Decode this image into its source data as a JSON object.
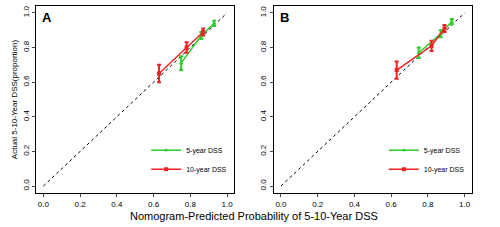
{
  "chart_data": {
    "type": "scatter",
    "xlabel": "Nomogram-Predicted Probability of 5-10-Year DSS",
    "ylabel": "Actual 5-10-Year DSS(proportion)",
    "legend": "lower right",
    "grid": false,
    "panels": [
      {
        "title": "A",
        "xlim": [
          -0.04,
          1.04
        ],
        "ylim": [
          -0.04,
          1.04
        ],
        "xticks": [
          {
            "value": 0,
            "label": "0.0"
          },
          0.2,
          0.4,
          0.6,
          0.8,
          {
            "value": 1,
            "label": "1.0"
          }
        ],
        "yticks": [
          {
            "value": 0,
            "label": "0.0"
          },
          0.2,
          0.4,
          0.6,
          0.8,
          {
            "value": 1,
            "label": "1.0"
          }
        ],
        "series": [
          {
            "color": "#000000",
            "line_style": "dotted",
            "x": [
              0,
              1
            ],
            "values": [
              0,
              1
            ]
          },
          {
            "name": "5-year DSS",
            "color": "#2ecc2e",
            "marker": "triangle",
            "line_style": "solid",
            "x": [
              0.75,
              0.86,
              0.93
            ],
            "values": [
              0.71,
              0.87,
              0.94
            ],
            "error": [
              0.04,
              0.02,
              0.015
            ]
          },
          {
            "name": "10-year DSS",
            "color": "#ee2222",
            "marker": "square",
            "line_style": "solid",
            "x": [
              0.63,
              0.78,
              0.87
            ],
            "values": [
              0.65,
              0.8,
              0.89
            ],
            "error": [
              0.05,
              0.03,
              0.02
            ]
          }
        ]
      },
      {
        "title": "B",
        "xlim": [
          -0.04,
          1.04
        ],
        "ylim": [
          -0.04,
          1.04
        ],
        "xticks": [
          {
            "value": 0,
            "label": "0.0"
          },
          0.2,
          0.4,
          0.6,
          0.8,
          {
            "value": 1,
            "label": "1.0"
          }
        ],
        "yticks": [
          {
            "value": 0,
            "label": "0.0"
          },
          0.2,
          0.4,
          0.6,
          0.8,
          {
            "value": 1,
            "label": "1.0"
          }
        ],
        "series": [
          {
            "color": "#000000",
            "line_style": "dotted",
            "x": [
              0,
              1
            ],
            "values": [
              0,
              1
            ]
          },
          {
            "name": "5-year DSS",
            "color": "#2ecc2e",
            "marker": "triangle",
            "line_style": "solid",
            "x": [
              0.75,
              0.87,
              0.93
            ],
            "values": [
              0.77,
              0.88,
              0.95
            ],
            "error": [
              0.03,
              0.02,
              0.015
            ]
          },
          {
            "name": "10-year DSS",
            "color": "#ee2222",
            "marker": "square",
            "line_style": "solid",
            "x": [
              0.63,
              0.82,
              0.89
            ],
            "values": [
              0.67,
              0.81,
              0.91
            ],
            "error": [
              0.05,
              0.03,
              0.02
            ]
          }
        ]
      }
    ]
  }
}
